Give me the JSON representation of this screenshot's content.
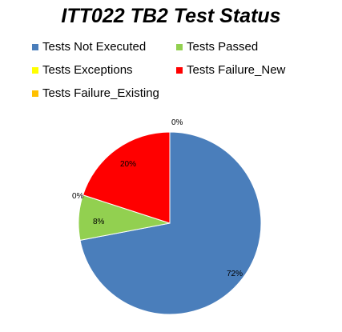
{
  "chart_data": {
    "type": "pie",
    "title": "ITT022 TB2 Test Status",
    "legend_position": "top",
    "slices": [
      {
        "name": "Tests Not Executed",
        "value": 72,
        "label": "72%",
        "color": "#4a7ebb"
      },
      {
        "name": "Tests Passed",
        "value": 8,
        "label": "8%",
        "color": "#92d050"
      },
      {
        "name": "Tests Exceptions",
        "value": 0,
        "label": "0%",
        "color": "#ffff00"
      },
      {
        "name": "Tests Failure_New",
        "value": 20,
        "label": "20%",
        "color": "#ff0000"
      },
      {
        "name": "Tests Failure_Existing",
        "value": 0,
        "label": "0%",
        "color": "#ffc000"
      }
    ]
  }
}
